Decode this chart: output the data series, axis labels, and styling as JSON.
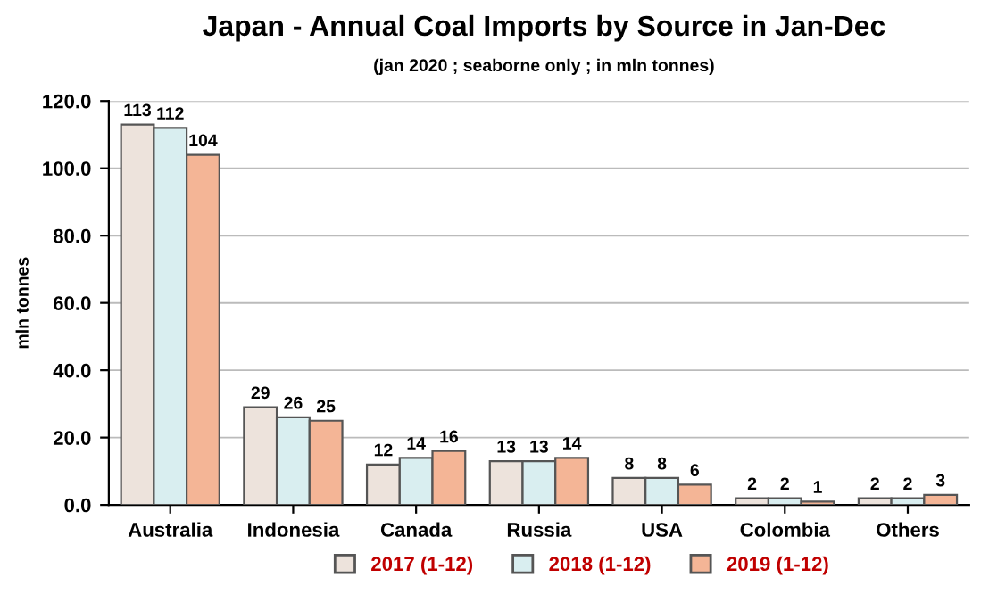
{
  "chart_data": {
    "type": "bar",
    "title": "Japan - Annual Coal Imports by Source in Jan-Dec",
    "subtitle": "(jan 2020 ; seaborne only ; in mln tonnes)",
    "ylabel": "mln tonnes",
    "categories": [
      "Australia",
      "Indonesia",
      "Canada",
      "Russia",
      "USA",
      "Colombia",
      "Others"
    ],
    "series": [
      {
        "name": "2017 (1-12)",
        "color": "#ede3dc",
        "values": [
          113,
          29,
          12,
          13,
          8,
          2,
          2
        ]
      },
      {
        "name": "2018 (1-12)",
        "color": "#d9eef0",
        "values": [
          112,
          26,
          14,
          13,
          8,
          2,
          2
        ]
      },
      {
        "name": "2019 (1-12)",
        "color": "#f4b596",
        "values": [
          104,
          25,
          16,
          14,
          6,
          1,
          3
        ]
      }
    ],
    "ylim": [
      0,
      120
    ],
    "yticks": [
      {
        "value": 0,
        "label": "0.0"
      },
      {
        "value": 20,
        "label": "20.0"
      },
      {
        "value": 40,
        "label": "40.0"
      },
      {
        "value": 60,
        "label": "60.0"
      },
      {
        "value": 80,
        "label": "80.0"
      },
      {
        "value": 100,
        "label": "100.0"
      },
      {
        "value": 120,
        "label": "120.0"
      }
    ],
    "grid": "y",
    "legend": "bottom",
    "data_labels": true
  }
}
